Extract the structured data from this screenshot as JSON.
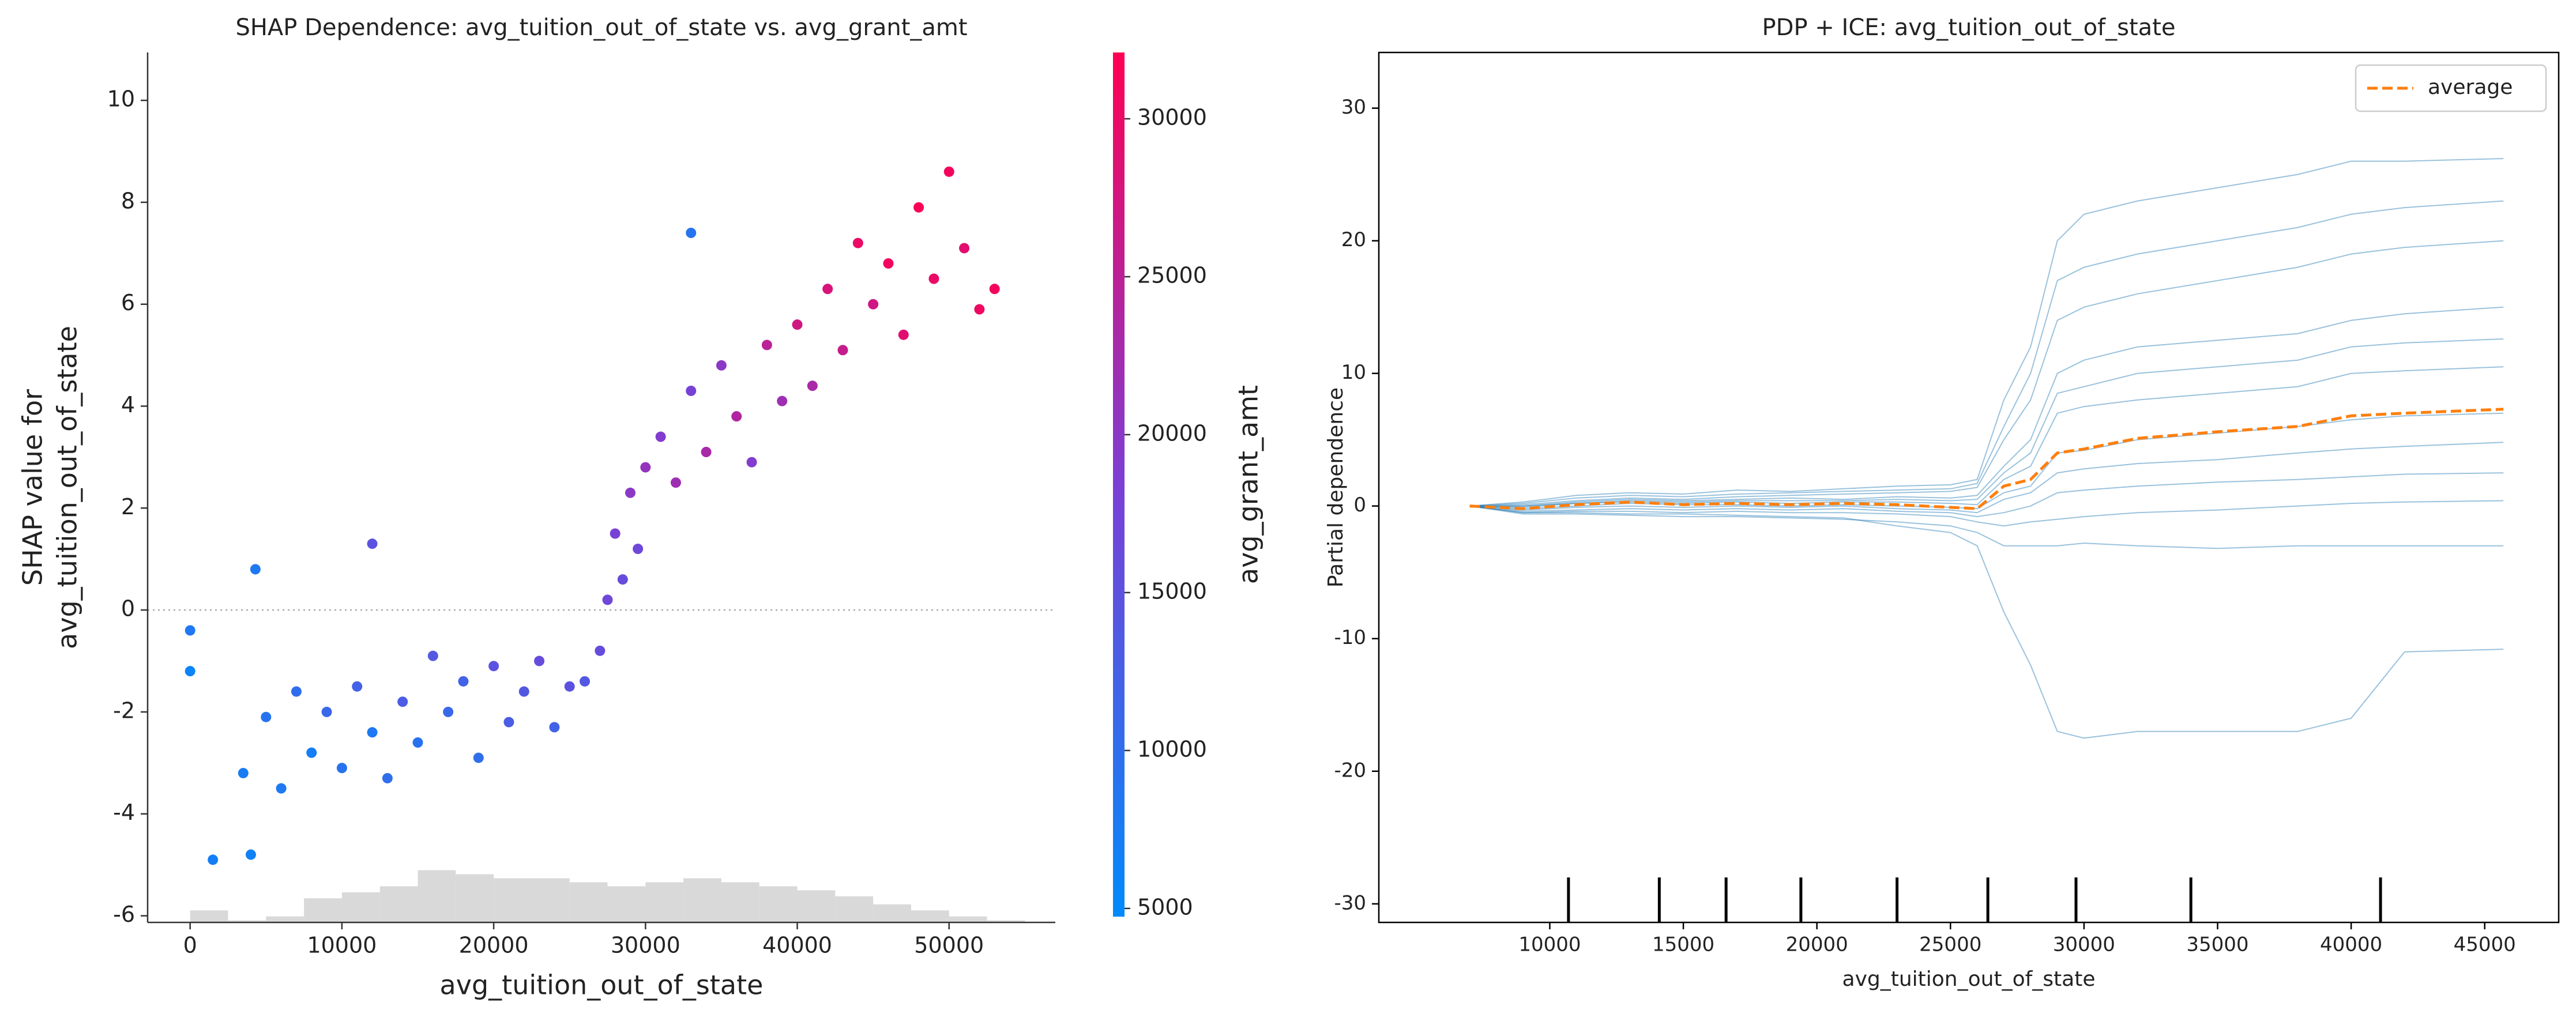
{
  "chart_data": [
    {
      "type": "scatter",
      "title": "SHAP Dependence: avg_tuition_out_of_state vs. avg_grant_amt",
      "x_label": "avg_tuition_out_of_state",
      "y_label": [
        "SHAP value for",
        "avg_tuition_out_of_state"
      ],
      "xlim": [
        -2800,
        57000
      ],
      "ylim": [
        -6.13,
        10.94
      ],
      "xticks": [
        0,
        10000,
        20000,
        30000,
        40000,
        50000
      ],
      "yticks": [
        -6,
        -4,
        -2,
        0,
        2,
        4,
        6,
        8,
        10
      ],
      "zero_line": true,
      "x": [
        0,
        0,
        1500,
        3500,
        4000,
        5000,
        6000,
        7000,
        8000,
        9000,
        10000,
        11000,
        12000,
        13000,
        14000,
        15000,
        16000,
        17000,
        18000,
        19000,
        20000,
        21000,
        22000,
        23000,
        24000,
        25000,
        26000,
        27000,
        27500,
        28000,
        28500,
        29000,
        29500,
        30000,
        31000,
        32000,
        33000,
        34000,
        35000,
        36000,
        37000,
        38000,
        39000,
        40000,
        41000,
        42000,
        43000,
        44000,
        45000,
        46000,
        47000,
        48000,
        49000,
        50000,
        51000,
        52000,
        53000,
        33000,
        12000,
        4300
      ],
      "values": [
        -0.4,
        -1.2,
        -4.9,
        -3.2,
        -4.8,
        -2.1,
        -3.5,
        -1.6,
        -2.8,
        -2.0,
        -3.1,
        -1.5,
        -2.4,
        -3.3,
        -1.8,
        -2.6,
        -0.9,
        -2.0,
        -1.4,
        -2.9,
        -1.1,
        -2.2,
        -1.6,
        -1.0,
        -2.3,
        -1.5,
        -1.4,
        -0.8,
        0.2,
        1.5,
        0.6,
        2.3,
        1.2,
        2.8,
        3.4,
        2.5,
        4.3,
        3.1,
        4.8,
        3.8,
        2.9,
        5.2,
        4.1,
        5.6,
        4.4,
        6.3,
        5.1,
        7.2,
        6.0,
        6.8,
        5.4,
        7.9,
        6.5,
        8.6,
        7.1,
        5.9,
        6.3,
        7.4,
        1.3,
        0.8
      ],
      "color_values": [
        8000,
        6000,
        7000,
        7500,
        6500,
        9000,
        8000,
        10000,
        7000,
        11000,
        9000,
        12000,
        8000,
        10000,
        13000,
        9000,
        14000,
        11000,
        12000,
        10000,
        15000,
        13000,
        14000,
        16000,
        12000,
        15000,
        14000,
        16000,
        17000,
        18000,
        16000,
        20000,
        17000,
        21000,
        19000,
        22000,
        18000,
        23000,
        20000,
        24000,
        19000,
        25000,
        22000,
        27000,
        23000,
        28000,
        26000,
        30000,
        27000,
        31000,
        29000,
        31500,
        30000,
        31000,
        29000,
        30500,
        31000,
        9000,
        15000,
        8000
      ],
      "colorbar": {
        "label": "avg_grant_amt",
        "lim": [
          4740,
          32100
        ],
        "ticks": [
          5000,
          10000,
          15000,
          20000,
          25000,
          30000
        ],
        "colors": [
          "#008bfb",
          "#7c3fd5",
          "#ff0052"
        ]
      },
      "histogram": {
        "bins": [
          0,
          2500,
          5000,
          7500,
          10000,
          12500,
          15000,
          17500,
          20000,
          22500,
          25000,
          27500,
          30000,
          32500,
          35000,
          37500,
          40000,
          42500,
          45000,
          47500,
          50000,
          52500,
          55000
        ],
        "counts": [
          6,
          1,
          3,
          12,
          15,
          18,
          26,
          24,
          22,
          22,
          20,
          18,
          20,
          22,
          20,
          18,
          16,
          13,
          9,
          6,
          3,
          1
        ],
        "color": "#d9d9d9"
      }
    },
    {
      "type": "line",
      "title": "PDP + ICE: avg_tuition_out_of_state",
      "x_label": "avg_tuition_out_of_state",
      "y_label": "Partial dependence",
      "xlim": [
        3600,
        47770
      ],
      "ylim": [
        -31.4,
        34.2
      ],
      "xticks": [
        10000,
        15000,
        20000,
        25000,
        30000,
        35000,
        40000,
        45000
      ],
      "yticks": [
        -30,
        -20,
        -10,
        0,
        10,
        20,
        30
      ],
      "x": [
        7000,
        9000,
        11000,
        13000,
        15000,
        17000,
        19000,
        21000,
        23000,
        25000,
        26000,
        27000,
        28000,
        29000,
        30000,
        32000,
        35000,
        38000,
        40000,
        42000,
        45700
      ],
      "ice_color": "#1f77b4",
      "ice": [
        [
          0,
          0.3,
          0.8,
          1.0,
          0.9,
          1.2,
          1.1,
          1.3,
          1.5,
          1.6,
          2.0,
          8,
          12,
          20,
          22,
          23,
          24,
          25,
          26,
          26,
          26.2
        ],
        [
          0,
          0.1,
          0.4,
          0.6,
          0.5,
          0.7,
          0.8,
          0.9,
          1.0,
          1.1,
          1.4,
          5,
          8,
          14,
          15,
          16,
          17,
          18,
          19,
          19.5,
          20
        ],
        [
          0,
          0,
          0.3,
          0.5,
          0.4,
          0.5,
          0.6,
          0.5,
          0.7,
          0.6,
          0.8,
          3,
          5,
          10,
          11,
          12,
          12.5,
          13,
          14,
          14.5,
          15
        ],
        [
          0,
          -0.1,
          0.2,
          0.3,
          0.2,
          0.3,
          0.2,
          0.3,
          0.3,
          0.2,
          0.1,
          2,
          3,
          7,
          7.5,
          8,
          8.5,
          9,
          10,
          10.2,
          10.5
        ],
        [
          0,
          -0.2,
          0,
          0.2,
          0.1,
          0.1,
          0,
          0.1,
          0,
          -0.1,
          -0.2,
          1,
          1.5,
          4,
          4.2,
          5,
          5.5,
          6,
          6.5,
          6.8,
          7
        ],
        [
          0,
          -0.3,
          -0.1,
          0,
          -0.1,
          0,
          -0.1,
          0,
          -0.2,
          -0.3,
          -0.5,
          0.5,
          1,
          2.5,
          2.8,
          3.2,
          3.5,
          4,
          4.3,
          4.5,
          4.8
        ],
        [
          0,
          -0.4,
          -0.3,
          -0.2,
          -0.3,
          -0.2,
          -0.3,
          -0.2,
          -0.4,
          -0.5,
          -0.8,
          -0.5,
          0,
          1,
          1.2,
          1.5,
          1.8,
          2,
          2.2,
          2.4,
          2.5
        ],
        [
          0,
          -0.5,
          -0.4,
          -0.4,
          -0.5,
          -0.4,
          -0.5,
          -0.5,
          -0.6,
          -0.8,
          -1.2,
          -1.5,
          -1.2,
          -1,
          -0.8,
          -0.5,
          -0.3,
          0,
          0.2,
          0.3,
          0.4
        ],
        [
          0,
          -0.6,
          -0.6,
          -0.7,
          -0.8,
          -0.8,
          -0.9,
          -1,
          -1.2,
          -1.5,
          -2,
          -3,
          -3,
          -3,
          -2.8,
          -3,
          -3.2,
          -3,
          -3,
          -3,
          -3
        ],
        [
          0,
          -0.5,
          -0.5,
          -0.6,
          -0.6,
          -0.7,
          -0.8,
          -0.9,
          -1.5,
          -2,
          -3,
          -8,
          -12,
          -17,
          -17.5,
          -17,
          -17,
          -17,
          -16,
          -11,
          -10.8
        ],
        [
          0,
          0.2,
          0.6,
          0.8,
          0.7,
          0.9,
          1,
          1.1,
          1.2,
          1.3,
          1.7,
          6,
          10,
          17,
          18,
          19,
          20,
          21,
          22,
          22.5,
          23
        ],
        [
          0,
          0,
          0.2,
          0.4,
          0.3,
          0.4,
          0.4,
          0.4,
          0.5,
          0.4,
          0.5,
          2.5,
          4,
          8.5,
          9,
          10,
          10.5,
          11,
          12,
          12.3,
          12.6
        ]
      ],
      "series": [
        {
          "name": "average",
          "color": "#ff7f0e",
          "dashed": true,
          "values": [
            0,
            -0.2,
            0.1,
            0.3,
            0.1,
            0.2,
            0.1,
            0.2,
            0.1,
            -0.1,
            -0.2,
            1.5,
            2.0,
            4.0,
            4.3,
            5.1,
            5.6,
            6.0,
            6.8,
            7.0,
            7.3
          ]
        }
      ],
      "deciles": [
        10700,
        14100,
        16600,
        19400,
        23000,
        26400,
        29700,
        34000,
        41100
      ],
      "legend": "upper right"
    }
  ]
}
